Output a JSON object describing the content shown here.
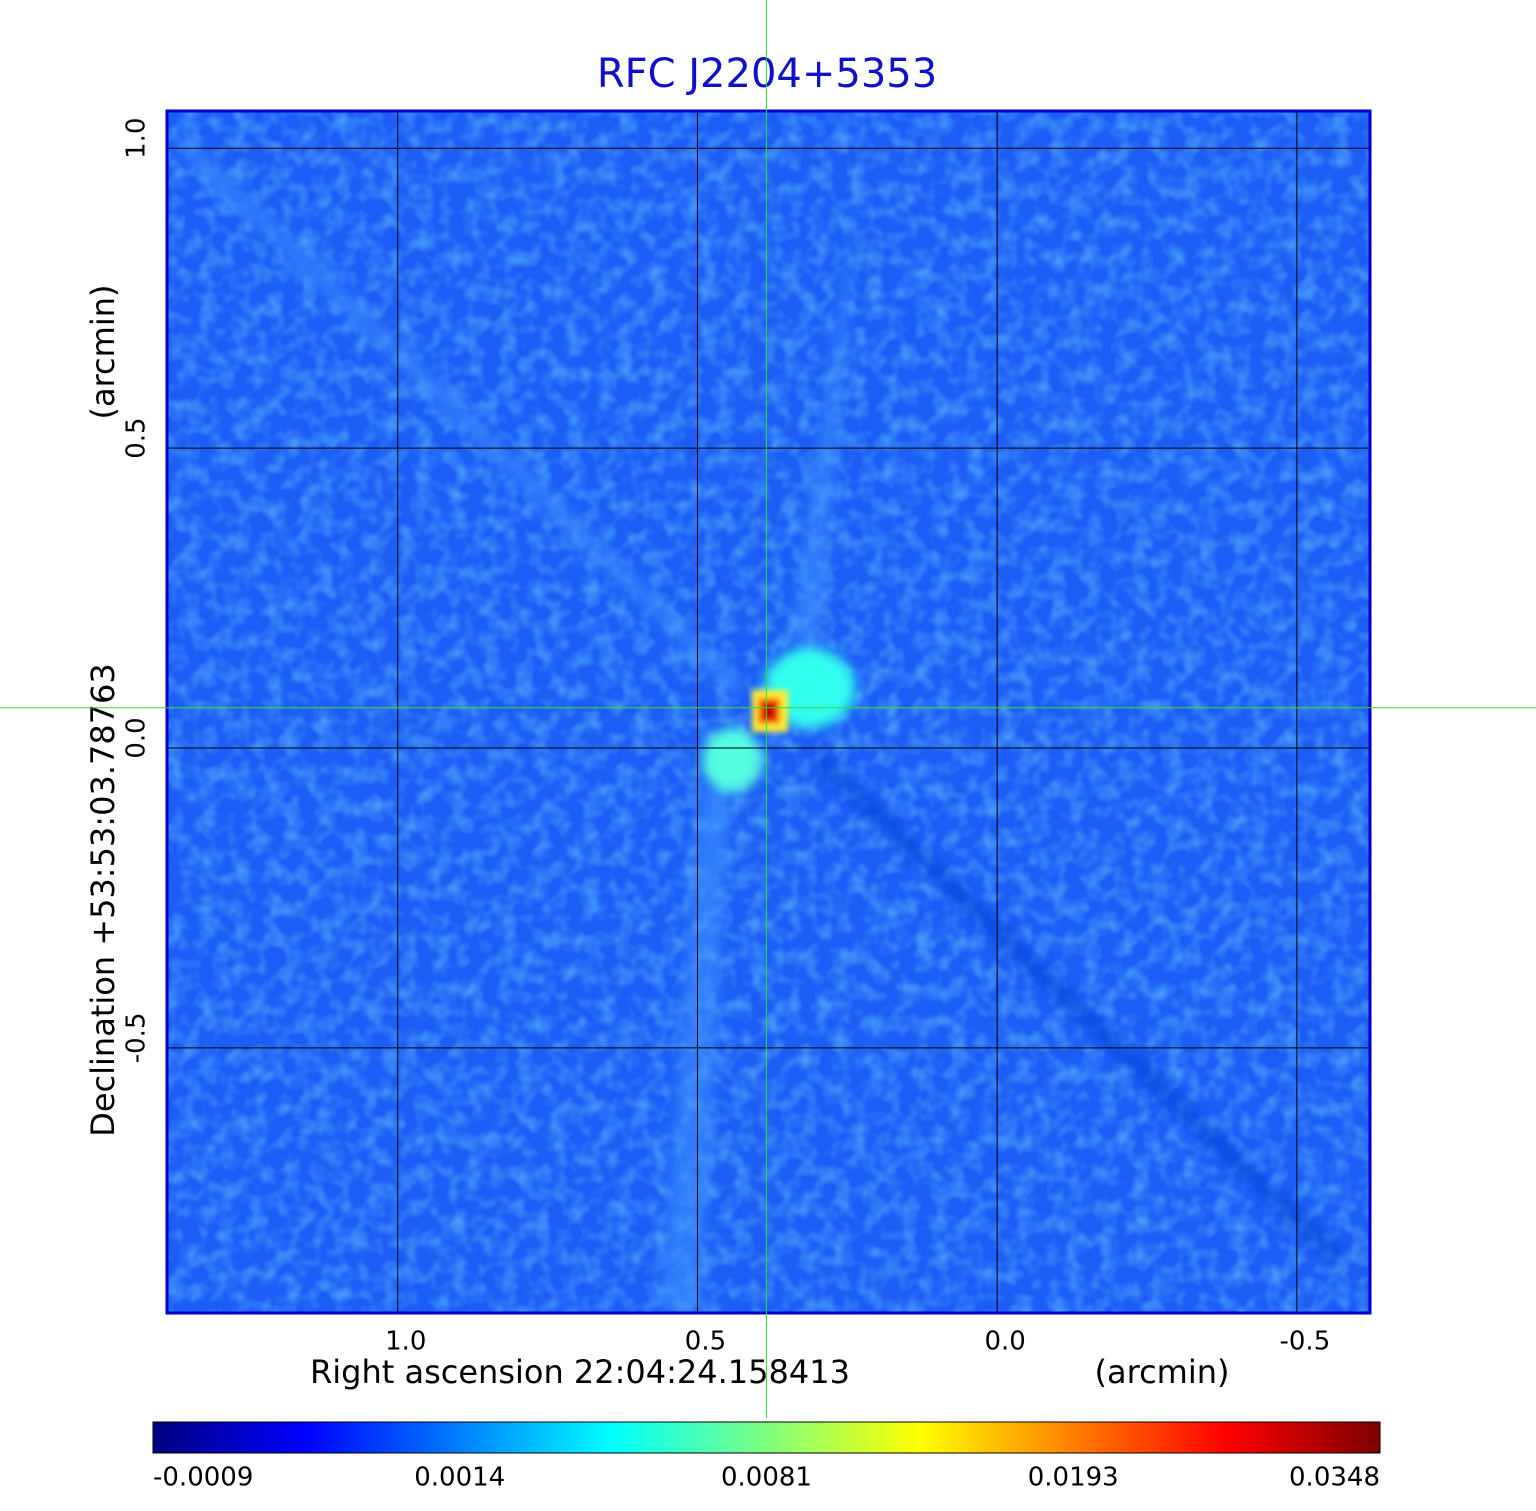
{
  "chart_data": {
    "type": "image",
    "title": "RFC J2204+5353",
    "x_label": "Right ascension  22:04:24.158413",
    "x_unit": "(arcmin)",
    "y_label": "Declination  +53:53:03.78763",
    "y_unit": "(arcmin)",
    "xlim": [
      1.385,
      -0.622
    ],
    "ylim": [
      -0.942,
      1.062
    ],
    "xticks": [
      {
        "value": 1,
        "label": "1.0"
      },
      0.5,
      {
        "value": 0,
        "label": "0.0"
      },
      -0.5
    ],
    "yticks": [
      {
        "value": 1,
        "label": "1.0"
      },
      0.5,
      {
        "value": 0,
        "label": "0.0"
      },
      -0.5
    ],
    "grid": true,
    "crosshair": {
      "x": 0.385,
      "y": 0.067,
      "color": "#33dd33"
    },
    "colorbar": {
      "ticks": [
        -0.0009,
        0.0014,
        0.0081,
        0.0193,
        0.0348
      ],
      "colors": [
        "#00007f",
        "#0000ff",
        "#007fff",
        "#00ffff",
        "#7fff7f",
        "#ffff00",
        "#ff7f00",
        "#ff0000",
        "#7f0000"
      ]
    }
  }
}
